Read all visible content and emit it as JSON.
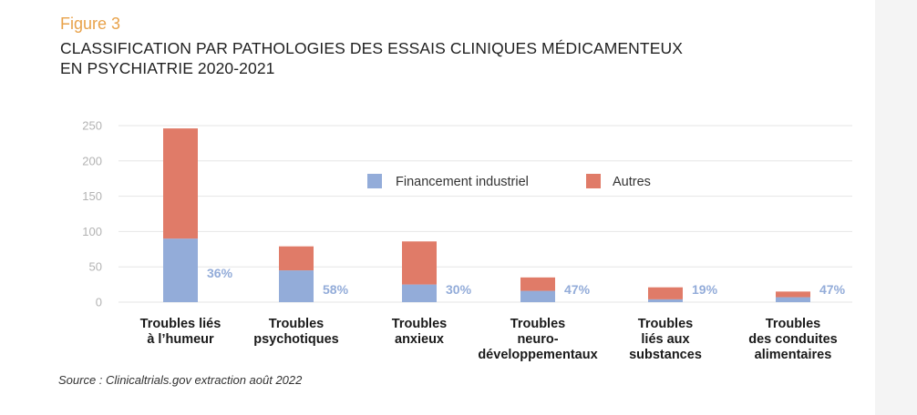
{
  "figure_label": "Figure 3",
  "title_lines": [
    "CLASSIFICATION PAR PATHOLOGIES DES ESSAIS CLINIQUES MÉDICAMENTEUX",
    "EN PSYCHIATRIE 2020-2021"
  ],
  "source": "Source : Clinicaltrials.gov extraction août 2022",
  "colors": {
    "industrial": "#93acd9",
    "other": "#e07b68",
    "pct_label": "#93acd9",
    "grid": "#e6e6e6",
    "figure_label": "#e8a24a"
  },
  "chart_data": {
    "type": "bar",
    "stacked": true,
    "ylim": [
      0,
      250
    ],
    "yticks": [
      "0",
      "50",
      "100",
      "150",
      "200",
      "250"
    ],
    "grid": true,
    "legend_position": "top-center",
    "categories": [
      [
        "Troubles liés",
        "à l’humeur"
      ],
      [
        "Troubles",
        "psychotiques"
      ],
      [
        "Troubles",
        "anxieux"
      ],
      [
        "Troubles",
        "neuro-",
        "développementaux"
      ],
      [
        "Troubles",
        "liés aux",
        "substances"
      ],
      [
        "Troubles",
        "des conduites",
        "alimentaires"
      ]
    ],
    "series": [
      {
        "name": "Financement industriel",
        "values": [
          90,
          45,
          25,
          16,
          4,
          7
        ]
      },
      {
        "name": "Autres",
        "values": [
          156,
          34,
          61,
          19,
          17,
          8
        ]
      }
    ],
    "share_labels": [
      "36%",
      "58%",
      "30%",
      "47%",
      "19%",
      "47%"
    ]
  }
}
